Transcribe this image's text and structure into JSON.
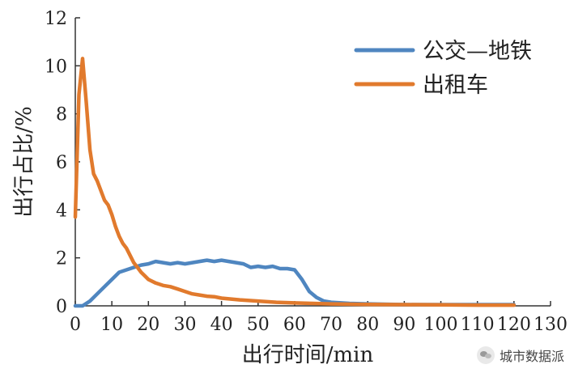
{
  "chart_data": {
    "type": "line",
    "title": "",
    "xlabel": "出行时间/min",
    "ylabel": "出行占比/%",
    "xlim": [
      0,
      130
    ],
    "ylim": [
      0,
      12
    ],
    "xticks": [
      0,
      10,
      20,
      30,
      40,
      50,
      60,
      70,
      80,
      90,
      100,
      110,
      120,
      130
    ],
    "yticks": [
      0,
      2,
      4,
      6,
      8,
      10,
      12
    ],
    "grid": false,
    "legend_position": "top-right",
    "series": [
      {
        "name": "公交—地铁",
        "color": "#4f86c0",
        "x": [
          0,
          2,
          4,
          6,
          8,
          10,
          12,
          14,
          16,
          18,
          20,
          22,
          24,
          26,
          28,
          30,
          32,
          34,
          36,
          38,
          40,
          42,
          44,
          46,
          48,
          50,
          52,
          54,
          56,
          58,
          60,
          62,
          64,
          66,
          68,
          70,
          75,
          80,
          90,
          100,
          110,
          120
        ],
        "values": [
          0,
          0,
          0.2,
          0.5,
          0.8,
          1.1,
          1.4,
          1.5,
          1.6,
          1.7,
          1.75,
          1.85,
          1.8,
          1.75,
          1.8,
          1.75,
          1.8,
          1.85,
          1.9,
          1.85,
          1.9,
          1.85,
          1.8,
          1.75,
          1.6,
          1.65,
          1.6,
          1.65,
          1.55,
          1.55,
          1.5,
          1.1,
          0.6,
          0.35,
          0.2,
          0.15,
          0.1,
          0.08,
          0.05,
          0.05,
          0.05,
          0.05
        ]
      },
      {
        "name": "出租车",
        "color": "#e17a2d",
        "x": [
          0,
          1,
          2,
          3,
          4,
          5,
          6,
          7,
          8,
          9,
          10,
          11,
          12,
          13,
          14,
          15,
          16,
          17,
          18,
          19,
          20,
          22,
          24,
          26,
          28,
          30,
          32,
          34,
          36,
          38,
          40,
          45,
          50,
          55,
          60,
          65,
          70,
          80,
          90,
          100,
          110,
          120
        ],
        "values": [
          3.7,
          8.8,
          10.3,
          8.5,
          6.5,
          5.5,
          5.2,
          4.8,
          4.4,
          4.2,
          3.8,
          3.3,
          2.9,
          2.6,
          2.4,
          2.1,
          1.8,
          1.6,
          1.4,
          1.25,
          1.1,
          0.95,
          0.85,
          0.8,
          0.7,
          0.6,
          0.5,
          0.45,
          0.4,
          0.38,
          0.32,
          0.25,
          0.2,
          0.15,
          0.12,
          0.1,
          0.08,
          0.06,
          0.05,
          0.04,
          0.03,
          0.03
        ]
      }
    ]
  },
  "watermark": {
    "text": "城市数据派",
    "icon": "wechat-icon"
  }
}
